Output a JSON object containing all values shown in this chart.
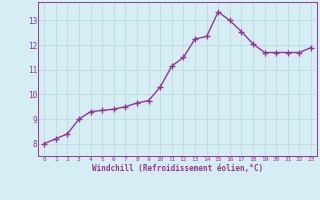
{
  "x": [
    0,
    1,
    2,
    3,
    4,
    5,
    6,
    7,
    8,
    9,
    10,
    11,
    12,
    13,
    14,
    15,
    16,
    17,
    18,
    19,
    20,
    21,
    22,
    23
  ],
  "y": [
    8.0,
    8.2,
    8.4,
    9.0,
    9.3,
    9.35,
    9.4,
    9.5,
    9.65,
    9.75,
    10.3,
    11.15,
    11.5,
    12.25,
    12.35,
    13.35,
    13.0,
    12.55,
    12.05,
    11.7,
    11.7,
    11.7,
    11.7,
    11.9
  ],
  "line_color": "#993399",
  "marker": "D",
  "marker_size": 2.2,
  "background_color": "#d4eef4",
  "grid_color": "#b8d8e0",
  "tick_color": "#993399",
  "label_color": "#993399",
  "xlabel": "Windchill (Refroidissement éolien,°C)",
  "ylim": [
    7.5,
    13.75
  ],
  "xlim": [
    -0.5,
    23.5
  ],
  "yticks": [
    8,
    9,
    10,
    11,
    12,
    13
  ],
  "xticks": [
    0,
    1,
    2,
    3,
    4,
    5,
    6,
    7,
    8,
    9,
    10,
    11,
    12,
    13,
    14,
    15,
    16,
    17,
    18,
    19,
    20,
    21,
    22,
    23
  ],
  "line_width": 1.0
}
